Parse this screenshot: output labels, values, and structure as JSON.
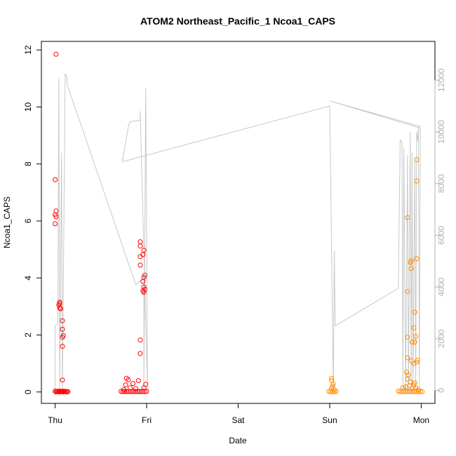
{
  "chart_data": {
    "type": "scatter",
    "title": "ATOM2 Northeast_Pacific_1 Ncoa1_CAPS",
    "xlabel": "Date",
    "ylabel": "Ncoa1_CAPS",
    "x_ticks": [
      "Thu",
      "Fri",
      "Sat",
      "Sun",
      "Mon"
    ],
    "xlim": [
      -0.15,
      4.15
    ],
    "ylim": [
      -0.4,
      12.3
    ],
    "y_ticks": [
      0,
      2,
      4,
      6,
      8,
      10,
      12
    ],
    "y2lim": [
      -500,
      13500
    ],
    "y2_ticks": [
      0,
      2000,
      4000,
      6000,
      8000,
      10000,
      12000
    ],
    "grid": false,
    "colors": {
      "red_series": "#ff0000",
      "orange_series": "#ff8c00",
      "line": "#c8c8c8",
      "axis": "#000000",
      "axis2": "#b0b0b0"
    },
    "series": [
      {
        "color": "#ff0000",
        "points": [
          [
            0.01,
            11.85
          ],
          [
            0.0,
            7.45
          ],
          [
            0.01,
            6.35
          ],
          [
            0.0,
            6.22
          ],
          [
            0.01,
            6.15
          ],
          [
            0.0,
            5.9
          ],
          [
            0.05,
            3.15
          ],
          [
            0.05,
            3.1
          ],
          [
            0.04,
            3.05
          ],
          [
            0.05,
            2.95
          ],
          [
            0.06,
            2.92
          ],
          [
            0.08,
            2.5
          ],
          [
            0.08,
            2.2
          ],
          [
            0.09,
            1.98
          ],
          [
            0.08,
            1.92
          ],
          [
            0.08,
            1.6
          ],
          [
            0.08,
            0.42
          ],
          [
            0.0,
            0.03
          ],
          [
            0.02,
            0.02
          ],
          [
            0.04,
            0.03
          ],
          [
            0.06,
            0.02
          ],
          [
            0.08,
            0.03
          ],
          [
            0.1,
            0.02
          ],
          [
            0.12,
            0.02
          ],
          [
            0.14,
            0.01
          ],
          [
            0.01,
            0.0
          ],
          [
            0.03,
            0.01
          ],
          [
            0.05,
            0.0
          ],
          [
            0.07,
            0.01
          ],
          [
            0.09,
            0.0
          ],
          [
            0.11,
            0.01
          ],
          [
            0.13,
            0.0
          ],
          [
            0.93,
            5.27
          ],
          [
            0.93,
            5.12
          ],
          [
            0.97,
            4.97
          ],
          [
            0.96,
            4.82
          ],
          [
            0.93,
            4.75
          ],
          [
            0.93,
            4.45
          ],
          [
            0.98,
            4.1
          ],
          [
            0.97,
            4.02
          ],
          [
            0.96,
            3.88
          ],
          [
            0.97,
            3.68
          ],
          [
            0.98,
            3.6
          ],
          [
            0.96,
            3.55
          ],
          [
            0.97,
            3.5
          ],
          [
            0.93,
            1.82
          ],
          [
            0.93,
            1.35
          ],
          [
            0.78,
            0.48
          ],
          [
            0.8,
            0.43
          ],
          [
            0.91,
            0.4
          ],
          [
            0.85,
            0.3
          ],
          [
            0.77,
            0.25
          ],
          [
            0.99,
            0.27
          ],
          [
            0.82,
            0.15
          ],
          [
            0.88,
            0.12
          ],
          [
            0.97,
            0.15
          ],
          [
            0.75,
            0.08
          ],
          [
            0.72,
            0.02
          ],
          [
            0.74,
            0.01
          ],
          [
            0.76,
            0.02
          ],
          [
            0.78,
            0.01
          ],
          [
            0.8,
            0.02
          ],
          [
            0.82,
            0.01
          ],
          [
            0.84,
            0.02
          ],
          [
            0.86,
            0.01
          ],
          [
            0.88,
            0.02
          ],
          [
            0.9,
            0.01
          ],
          [
            0.92,
            0.02
          ],
          [
            0.94,
            0.01
          ],
          [
            0.96,
            0.02
          ],
          [
            0.98,
            0.01
          ],
          [
            1.0,
            0.02
          ]
        ]
      },
      {
        "color": "#ff8c00",
        "points": [
          [
            3.02,
            0.48
          ],
          [
            3.02,
            0.4
          ],
          [
            3.04,
            0.28
          ],
          [
            3.03,
            0.2
          ],
          [
            3.02,
            0.12
          ],
          [
            3.05,
            0.08
          ],
          [
            2.99,
            0.02
          ],
          [
            3.01,
            0.01
          ],
          [
            3.03,
            0.02
          ],
          [
            3.05,
            0.01
          ],
          [
            3.07,
            0.02
          ],
          [
            3.95,
            8.15
          ],
          [
            3.95,
            7.4
          ],
          [
            3.85,
            6.12
          ],
          [
            3.95,
            4.68
          ],
          [
            3.89,
            4.6
          ],
          [
            3.88,
            4.55
          ],
          [
            3.89,
            4.33
          ],
          [
            3.85,
            3.52
          ],
          [
            3.93,
            2.8
          ],
          [
            3.92,
            2.25
          ],
          [
            3.85,
            1.92
          ],
          [
            3.94,
            1.95
          ],
          [
            3.9,
            1.75
          ],
          [
            3.93,
            1.75
          ],
          [
            3.85,
            1.2
          ],
          [
            3.89,
            1.1
          ],
          [
            3.92,
            1.0
          ],
          [
            3.95,
            1.05
          ],
          [
            3.96,
            1.12
          ],
          [
            3.84,
            0.7
          ],
          [
            3.86,
            0.6
          ],
          [
            3.85,
            0.45
          ],
          [
            3.88,
            0.35
          ],
          [
            3.93,
            0.32
          ],
          [
            3.92,
            0.25
          ],
          [
            3.8,
            0.15
          ],
          [
            3.83,
            0.18
          ],
          [
            3.87,
            0.22
          ],
          [
            3.9,
            0.12
          ],
          [
            3.94,
            0.15
          ],
          [
            3.97,
            0.08
          ],
          [
            3.75,
            0.03
          ],
          [
            3.77,
            0.01
          ],
          [
            3.79,
            0.02
          ],
          [
            3.81,
            0.01
          ],
          [
            3.83,
            0.02
          ],
          [
            3.85,
            0.01
          ],
          [
            3.87,
            0.02
          ],
          [
            3.89,
            0.01
          ],
          [
            3.91,
            0.02
          ],
          [
            3.93,
            0.01
          ],
          [
            3.95,
            0.02
          ],
          [
            3.97,
            0.01
          ],
          [
            3.99,
            0.02
          ],
          [
            4.01,
            0.01
          ]
        ]
      }
    ],
    "secondary_line": {
      "axis": "right",
      "color": "#c8c8c8",
      "points": [
        [
          0.0,
          0
        ],
        [
          0.0,
          2500
        ],
        [
          0.03,
          2600
        ],
        [
          0.04,
          12050
        ],
        [
          0.05,
          0
        ],
        [
          0.07,
          9200
        ],
        [
          0.08,
          0
        ],
        [
          0.11,
          12250
        ],
        [
          0.13,
          12100
        ],
        [
          0.13,
          11850
        ],
        [
          0.88,
          4100
        ],
        [
          0.97,
          4350
        ],
        [
          0.97,
          0
        ],
        [
          0.99,
          11700
        ],
        [
          1.01,
          0
        ],
        [
          0.93,
          10800
        ],
        [
          0.93,
          10450
        ],
        [
          0.82,
          10400
        ],
        [
          0.8,
          10200
        ],
        [
          0.78,
          9800
        ],
        [
          0.74,
          8950
        ],
        [
          0.73,
          8950
        ],
        [
          0.74,
          8850
        ],
        [
          3.0,
          11000
        ],
        [
          3.04,
          0
        ],
        [
          3.05,
          5400
        ],
        [
          3.06,
          2500
        ],
        [
          3.75,
          3950
        ],
        [
          3.77,
          9700
        ],
        [
          3.79,
          9600
        ],
        [
          3.8,
          0
        ],
        [
          3.81,
          9400
        ],
        [
          3.83,
          0
        ],
        [
          3.85,
          9100
        ],
        [
          3.86,
          0
        ],
        [
          3.88,
          10000
        ],
        [
          3.89,
          0
        ],
        [
          3.9,
          9200
        ],
        [
          3.91,
          0
        ],
        [
          3.93,
          8900
        ],
        [
          3.94,
          0
        ],
        [
          3.95,
          10000
        ],
        [
          3.96,
          9650
        ],
        [
          3.97,
          10200
        ],
        [
          3.98,
          0
        ],
        [
          3.99,
          10150
        ],
        [
          3.0,
          11200
        ],
        [
          4.0,
          10200
        ]
      ]
    }
  }
}
